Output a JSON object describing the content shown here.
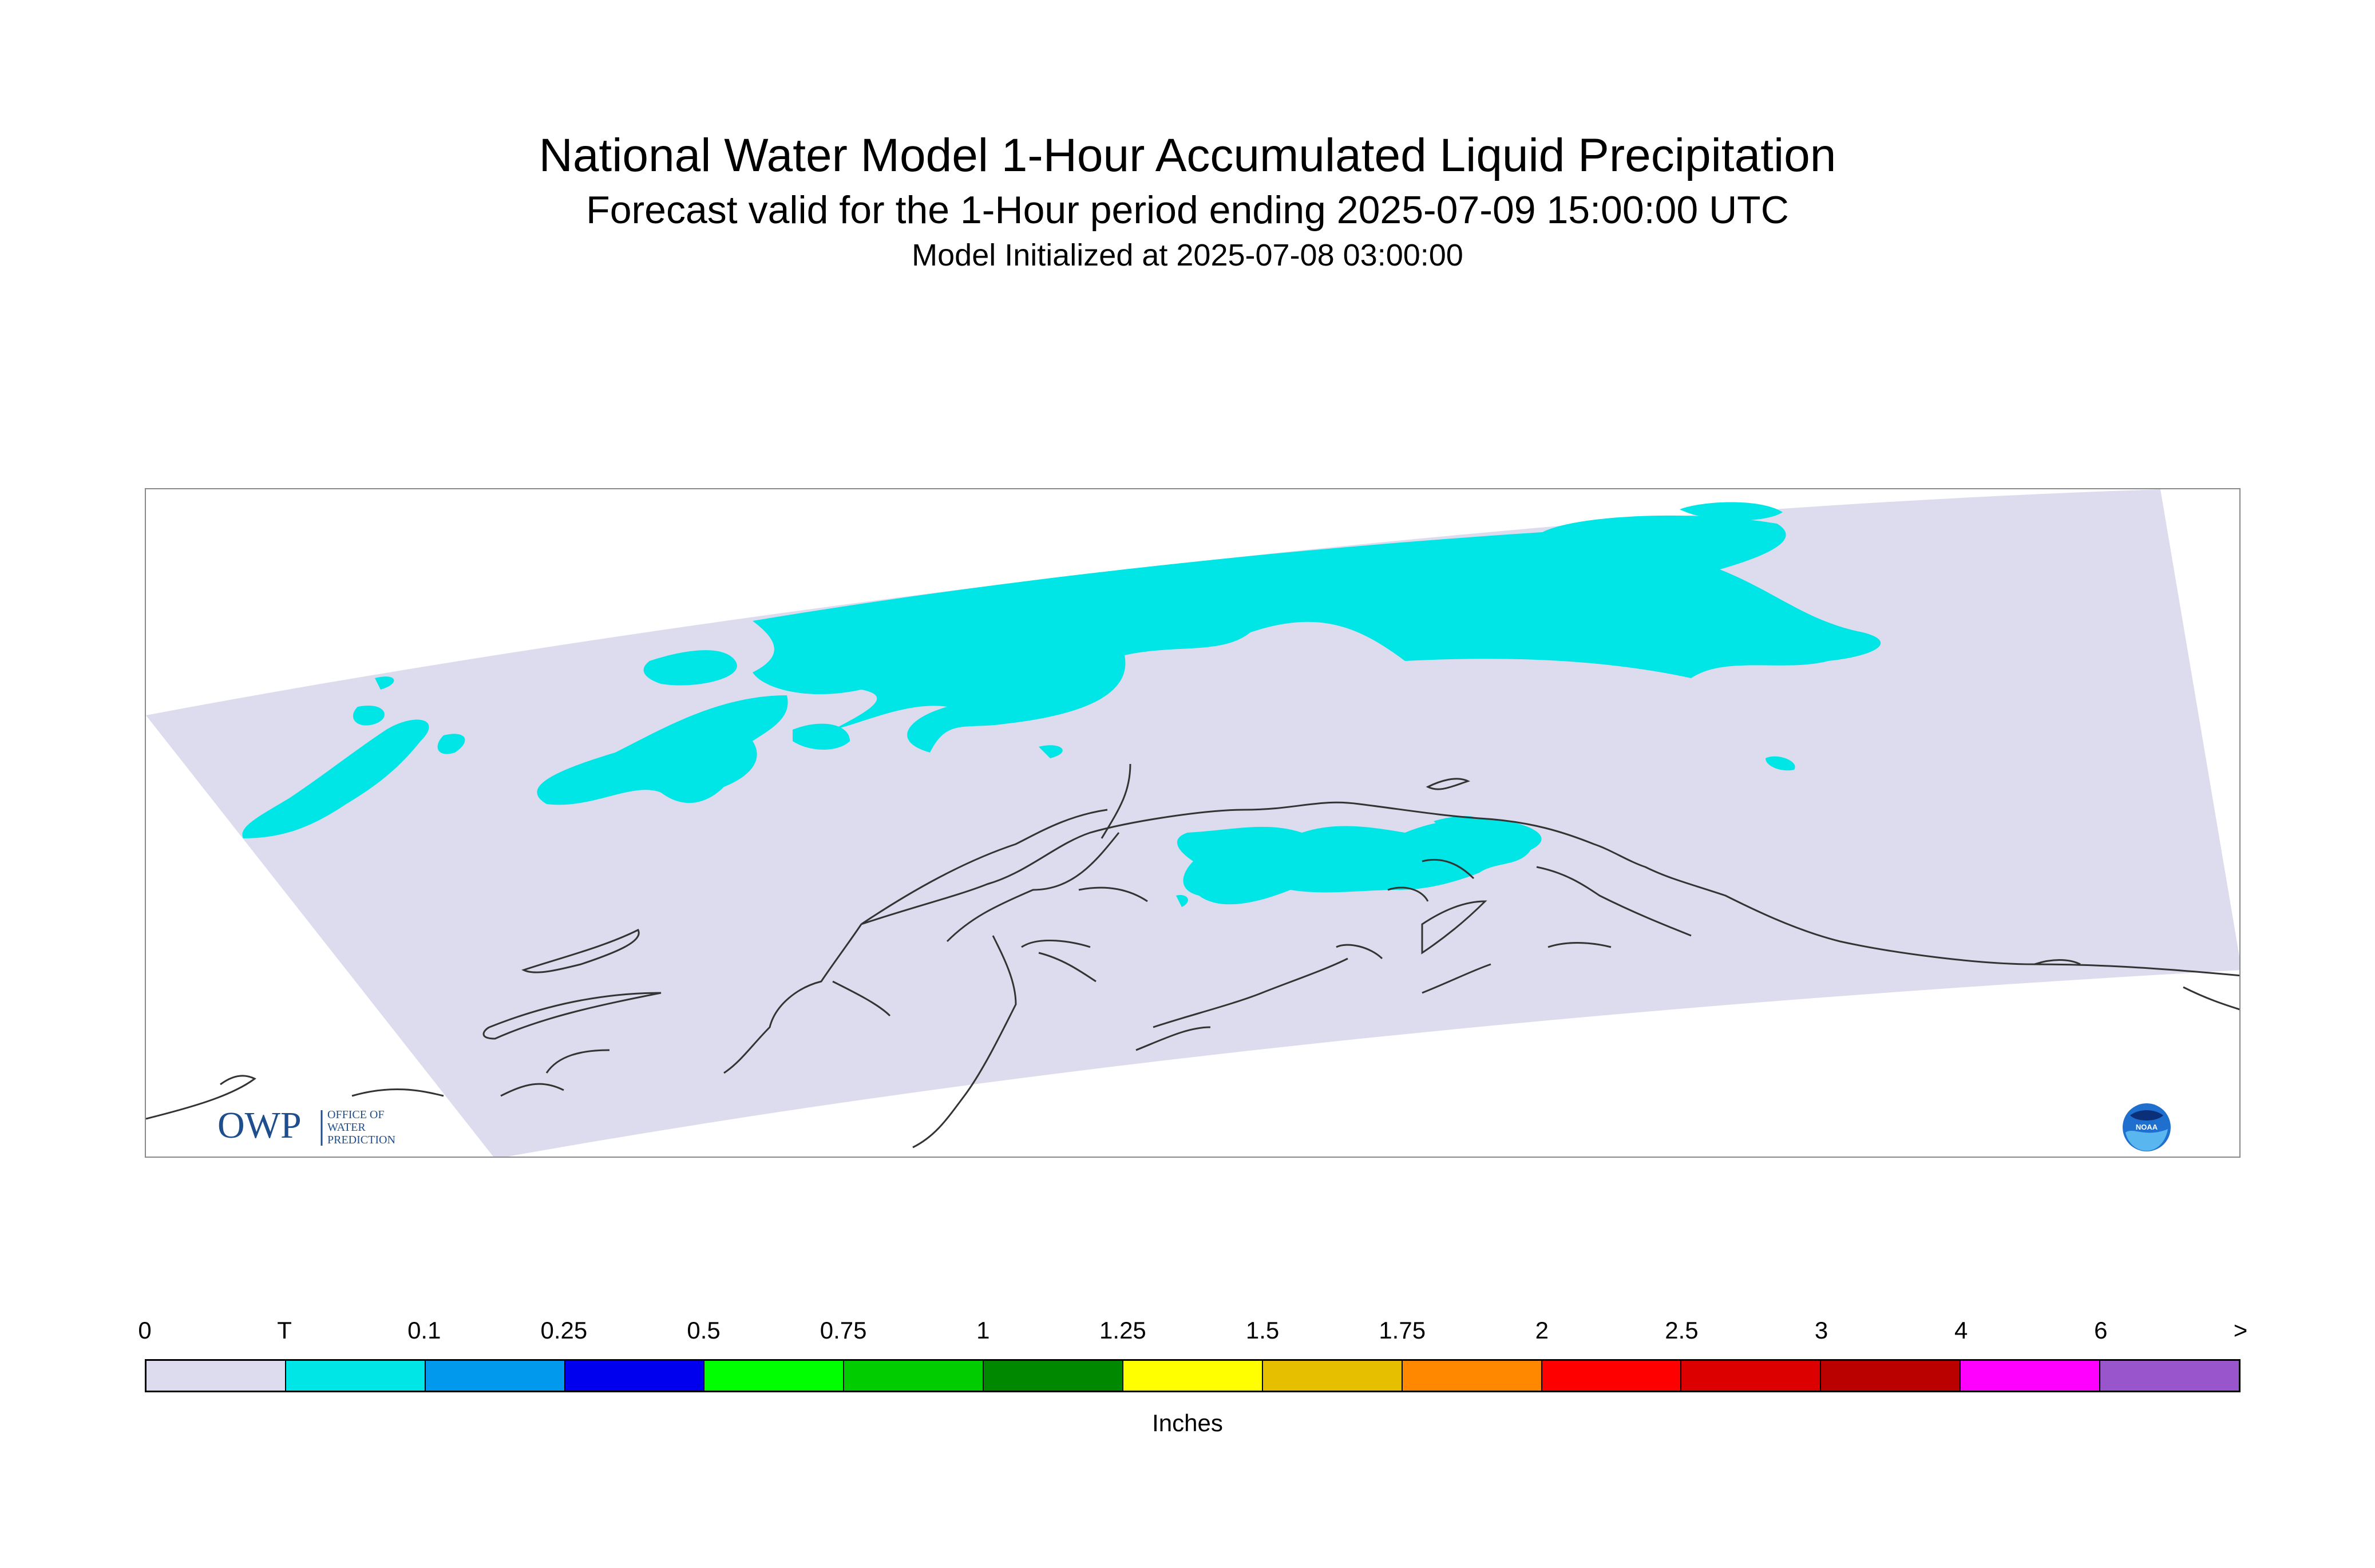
{
  "header": {
    "title": "National Water Model 1-Hour Accumulated Liquid Precipitation",
    "subtitle": "Forecast valid for the 1-Hour period ending 2025-07-09 15:00:00 UTC",
    "initialized": "Model Initialized at 2025-07-08 03:00:00"
  },
  "map": {
    "domain_fill": "#dcdcee",
    "precip_fill": "#00e5e5",
    "coastline_color": "#333333"
  },
  "logos": {
    "owp_mark": "OWP",
    "owp_line1": "OFFICE OF",
    "owp_line2": "WATER",
    "owp_line3": "PREDICTION",
    "noaa_text": "NOAA",
    "owp_icon": "owp-logo",
    "noaa_icon": "noaa-logo"
  },
  "legend": {
    "labels": [
      "0",
      "T",
      "0.1",
      "0.25",
      "0.5",
      "0.75",
      "1",
      "1.25",
      "1.5",
      "1.75",
      "2",
      "2.5",
      "3",
      "4",
      "6",
      ">"
    ],
    "colors": [
      "#dcdcee",
      "#00e5e5",
      "#0099ee",
      "#0000ee",
      "#00ff00",
      "#00cc00",
      "#008800",
      "#ffff00",
      "#e6c000",
      "#ff8800",
      "#ff0000",
      "#dd0000",
      "#bb0000",
      "#ff00ff",
      "#9955cc"
    ],
    "units": "Inches"
  }
}
